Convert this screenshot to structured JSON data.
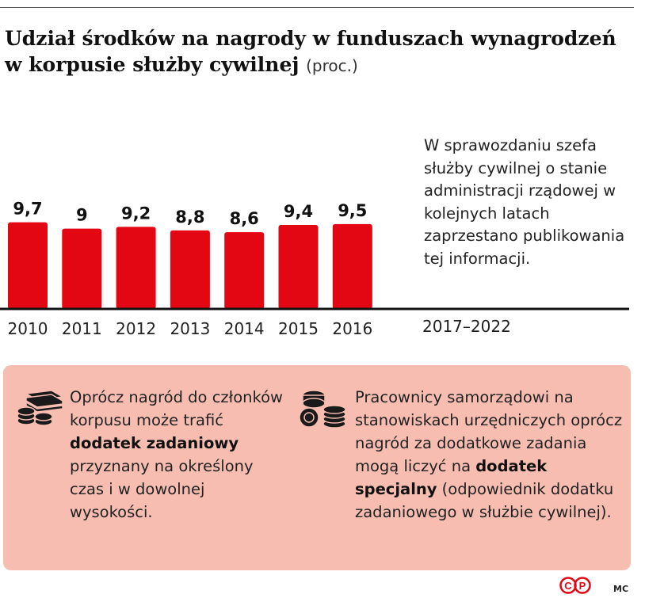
{
  "title": {
    "main": "Udział środków na nagrody w funduszach wynagrodzeń w korpusie służby cywilnej",
    "unit": "(proc.)"
  },
  "chart_data": {
    "type": "bar",
    "title": "Udział środków na nagrody w funduszach wynagrodzeń w korpusie służby cywilnej (proc.)",
    "categories": [
      "2010",
      "2011",
      "2012",
      "2013",
      "2014",
      "2015",
      "2016"
    ],
    "values": [
      9.7,
      9,
      9.2,
      8.8,
      8.6,
      9.4,
      9.5
    ],
    "value_labels": [
      "9,7",
      "9",
      "9,2",
      "8,8",
      "8,6",
      "9,4",
      "9,5"
    ],
    "ylim": [
      0,
      10
    ],
    "bar_color": "#e30613",
    "grid": false
  },
  "side_note": {
    "text": "W sprawozdaniu szefa służby cywilnej o stanie administracji rządowej w kolejnych latach zaprzestano publikowania tej informacji.",
    "period": "2017–2022"
  },
  "info_box": {
    "background": "#f7bdb0",
    "left": {
      "icon": "money-stack-icon",
      "before": "Oprócz nagród do członków korpusu może trafić ",
      "bold": "dodatek zadaniowy",
      "after": " przyznany na określony czas i w dowolnej wysokości."
    },
    "right": {
      "icon": "coins-icon",
      "before": "Pracownicy samorządowi na stanowiskach urzędniczych oprócz nagród za dodatkowe zadania mogą liczyć na ",
      "bold": "dodatek specjalny",
      "after": " (odpowiednik dodatku zadaniowego w służbie cywilnej)."
    }
  },
  "footer": {
    "logo": "CP",
    "credit": "MC"
  }
}
